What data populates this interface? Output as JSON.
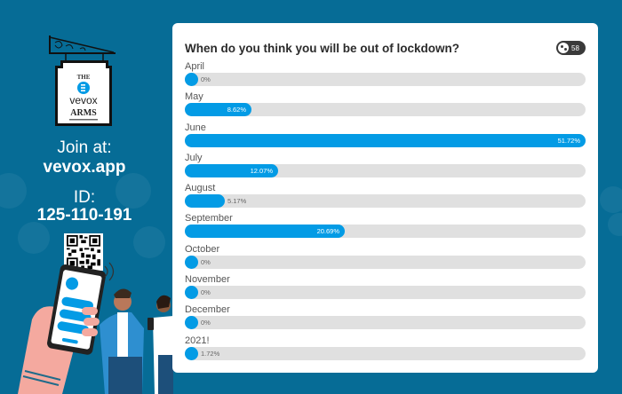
{
  "theme": {
    "background": "#066c96",
    "accent": "#039be5",
    "track": "#e0e0e0",
    "badge": "#3a3a3a"
  },
  "left_panel": {
    "sign": {
      "line1": "THE",
      "line2": "vevox",
      "line3": "ARMS"
    },
    "join_label": "Join at:",
    "join_url": "vevox.app",
    "id_label": "ID:",
    "id_value": "125-110-191"
  },
  "poll": {
    "question": "When do you think you will be out of lockdown?",
    "participants_icon": "participants-icon",
    "participants": "58"
  },
  "chart_data": {
    "type": "bar",
    "orientation": "horizontal",
    "title": "When do you think you will be out of lockdown?",
    "categories": [
      "April",
      "May",
      "June",
      "July",
      "August",
      "September",
      "October",
      "November",
      "December",
      "2021!"
    ],
    "values": [
      0,
      8.62,
      51.72,
      12.07,
      5.17,
      20.69,
      0,
      0,
      0,
      1.72
    ],
    "labels": [
      "0%",
      "8.62%",
      "51.72%",
      "12.07%",
      "5.17%",
      "20.69%",
      "0%",
      "0%",
      "0%",
      "1.72%"
    ],
    "unit": "%",
    "scale": "relative-to-max",
    "xlim": [
      0,
      51.72
    ],
    "grid": false,
    "legend": "none",
    "responses": 58
  }
}
